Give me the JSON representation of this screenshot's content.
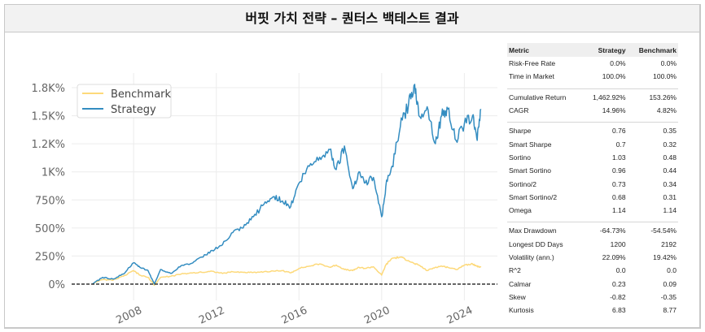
{
  "window": {
    "title": "버핏 가치 전략 – 퀀터스 백테스트 결과"
  },
  "chart_data": {
    "type": "line",
    "title": "",
    "xlabel": "",
    "ylabel": "",
    "x_ticks": [
      "2008",
      "2012",
      "2016",
      "2020",
      "2024"
    ],
    "y_ticks": [
      "0%",
      "250%",
      "500%",
      "750%",
      "1K%",
      "1.2K%",
      "1.5K%",
      "1.8K%"
    ],
    "y_tick_values": [
      0,
      250,
      500,
      750,
      1000,
      1250,
      1500,
      1750
    ],
    "ylim": [
      -50,
      1850
    ],
    "xlim": [
      2004.8,
      2025.6
    ],
    "legend": [
      "Benchmark",
      "Strategy"
    ],
    "legend_position": "upper left",
    "grid": true,
    "zero_line": "dashed",
    "colors": {
      "Benchmark": "#fdd97a",
      "Strategy": "#348dc1"
    },
    "x": [
      2006.0,
      2006.5,
      2007.0,
      2007.5,
      2008.0,
      2008.3,
      2008.7,
      2009.0,
      2009.3,
      2009.8,
      2010.3,
      2010.8,
      2011.3,
      2011.8,
      2012.3,
      2012.8,
      2013.3,
      2013.8,
      2014.3,
      2014.8,
      2015.2,
      2015.6,
      2016.0,
      2016.5,
      2017.0,
      2017.5,
      2017.8,
      2018.2,
      2018.6,
      2018.9,
      2019.2,
      2019.6,
      2020.0,
      2020.2,
      2020.5,
      2020.9,
      2021.3,
      2021.6,
      2021.8,
      2022.2,
      2022.6,
      2022.9,
      2023.2,
      2023.6,
      2024.0,
      2024.4,
      2024.6,
      2024.8
    ],
    "series": [
      {
        "name": "Strategy",
        "values": [
          0,
          60,
          45,
          90,
          190,
          150,
          120,
          0,
          130,
          95,
          165,
          185,
          240,
          300,
          350,
          460,
          500,
          600,
          710,
          780,
          740,
          690,
          900,
          1050,
          1130,
          1200,
          1020,
          1230,
          850,
          1000,
          900,
          950,
          600,
          870,
          1050,
          1400,
          1600,
          1780,
          1500,
          1580,
          1250,
          1500,
          1560,
          1280,
          1430,
          1500,
          1300,
          1560
        ]
      },
      {
        "name": "Benchmark",
        "values": [
          0,
          40,
          35,
          70,
          120,
          80,
          60,
          -10,
          60,
          70,
          90,
          100,
          105,
          115,
          95,
          110,
          105,
          105,
          110,
          115,
          120,
          100,
          140,
          160,
          180,
          150,
          170,
          130,
          120,
          150,
          140,
          155,
          80,
          170,
          230,
          240,
          210,
          180,
          170,
          120,
          150,
          160,
          150,
          130,
          170,
          180,
          160,
          150
        ]
      }
    ]
  },
  "stats": {
    "headers": [
      "Metric",
      "Strategy",
      "Benchmark"
    ],
    "groups": [
      [
        [
          "Risk-Free Rate",
          "0.0%",
          "0.0%"
        ],
        [
          "Time in Market",
          "100.0%",
          "100.0%"
        ]
      ],
      [
        [
          "Cumulative Return",
          "1,462.92%",
          "153.26%"
        ],
        [
          "CAGR",
          "14.96%",
          "4.82%"
        ]
      ],
      [
        [
          "Sharpe",
          "0.76",
          "0.35"
        ],
        [
          "Smart Sharpe",
          "0.7",
          "0.32"
        ],
        [
          "Sortino",
          "1.03",
          "0.48"
        ],
        [
          "Smart Sortino",
          "0.96",
          "0.44"
        ],
        [
          "Sortino/2",
          "0.73",
          "0.34"
        ],
        [
          "Smart Sortino/2",
          "0.68",
          "0.31"
        ],
        [
          "Omega",
          "1.14",
          "1.14"
        ]
      ],
      [
        [
          "Max Drawdown",
          "-64.73%",
          "-54.54%"
        ],
        [
          "Longest DD Days",
          "1200",
          "2192"
        ],
        [
          "Volatility (ann.)",
          "22.09%",
          "19.42%"
        ],
        [
          "R^2",
          "0.0",
          "0.0"
        ],
        [
          "Calmar",
          "0.23",
          "0.09"
        ],
        [
          "Skew",
          "-0.82",
          "-0.35"
        ],
        [
          "Kurtosis",
          "6.83",
          "8.77"
        ]
      ]
    ]
  }
}
